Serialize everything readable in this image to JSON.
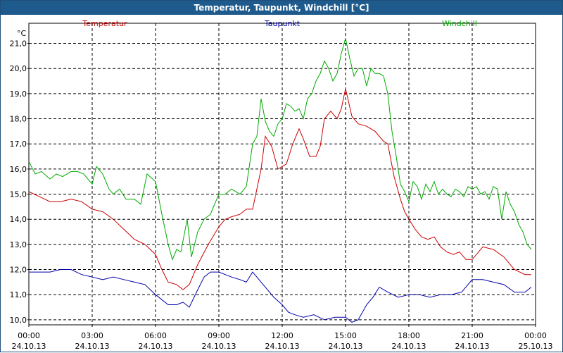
{
  "window": {
    "title": "Temperatur, Taupunkt, Windchill [°C]"
  },
  "chart_data": {
    "type": "line",
    "title": "Temperatur, Taupunkt, Windchill [°C]",
    "ylabel": "°C",
    "xlim": [
      "2013-10-24T00:00",
      "2013-10-25T00:00"
    ],
    "ylim": [
      9.8,
      21.8
    ],
    "grid": true,
    "legend": "top",
    "yticks": [
      "21,0",
      "20,0",
      "19,0",
      "18,0",
      "17,0",
      "16,0",
      "15,0",
      "14,0",
      "13,0",
      "12,0",
      "11,0",
      "10,0"
    ],
    "ytick_values": [
      21,
      20,
      19,
      18,
      17,
      16,
      15,
      14,
      13,
      12,
      11,
      10
    ],
    "xticks": [
      {
        "time": "00:00",
        "date": "24.10.13",
        "hour": 0
      },
      {
        "time": "03:00",
        "date": "24.10.13",
        "hour": 3
      },
      {
        "time": "06:00",
        "date": "24.10.13",
        "hour": 6
      },
      {
        "time": "09:00",
        "date": "24.10.13",
        "hour": 9
      },
      {
        "time": "12:00",
        "date": "24.10.13",
        "hour": 12
      },
      {
        "time": "15:00",
        "date": "24.10.13",
        "hour": 15
      },
      {
        "time": "18:00",
        "date": "24.10.13",
        "hour": 18
      },
      {
        "time": "21:00",
        "date": "24.10.13",
        "hour": 21
      },
      {
        "time": "00:00",
        "date": "25.10.13",
        "hour": 24
      }
    ],
    "series": [
      {
        "name": "Temperatur",
        "color": "#cc0000",
        "x": [
          0,
          0.5,
          1,
          1.5,
          2,
          2.5,
          3,
          3.5,
          4,
          4.5,
          5,
          5.5,
          6,
          6.3,
          6.6,
          7,
          7.3,
          7.6,
          8,
          8.5,
          9,
          9.3,
          9.6,
          10,
          10.3,
          10.6,
          10.8,
          11,
          11.2,
          11.5,
          11.8,
          12,
          12.2,
          12.5,
          12.8,
          13,
          13.3,
          13.6,
          13.8,
          14,
          14.3,
          14.6,
          14.8,
          15,
          15.3,
          15.6,
          16,
          16.4,
          16.8,
          17,
          17.3,
          17.6,
          17.8,
          18,
          18.3,
          18.6,
          18.9,
          19.2,
          19.5,
          19.8,
          20.1,
          20.4,
          20.7,
          21,
          21.5,
          22,
          22.5,
          23,
          23.5,
          23.8
        ],
        "y": [
          15.1,
          14.9,
          14.7,
          14.7,
          14.8,
          14.7,
          14.4,
          14.3,
          14.0,
          13.6,
          13.2,
          13.0,
          12.6,
          12.0,
          11.5,
          11.4,
          11.2,
          11.4,
          12.2,
          13.0,
          13.7,
          14.0,
          14.1,
          14.2,
          14.4,
          14.4,
          15.2,
          16.0,
          17.3,
          16.9,
          16.0,
          16.1,
          16.2,
          17.0,
          17.6,
          17.2,
          16.5,
          16.5,
          16.9,
          18.0,
          18.3,
          18.0,
          18.4,
          19.2,
          18.1,
          17.8,
          17.7,
          17.5,
          17.1,
          17.0,
          15.7,
          14.8,
          14.3,
          14.0,
          13.6,
          13.3,
          13.2,
          13.3,
          12.9,
          12.7,
          12.6,
          12.7,
          12.4,
          12.4,
          12.9,
          12.8,
          12.5,
          12.0,
          11.8,
          11.8
        ]
      },
      {
        "name": "Taupunkt",
        "color": "#0000aa",
        "x": [
          0,
          0.5,
          1,
          1.5,
          2,
          2.5,
          3,
          3.5,
          4,
          4.5,
          5,
          5.5,
          6,
          6.3,
          6.6,
          7,
          7.3,
          7.6,
          8,
          8.3,
          8.6,
          9,
          9.3,
          9.6,
          10,
          10.3,
          10.6,
          11,
          11.3,
          11.6,
          12,
          12.3,
          12.6,
          13,
          13.5,
          14,
          14.5,
          15,
          15.3,
          15.6,
          16,
          16.3,
          16.6,
          17,
          17.5,
          18,
          18.5,
          19,
          19.5,
          20,
          20.5,
          21,
          21.5,
          22,
          22.5,
          23,
          23.5,
          23.8
        ],
        "y": [
          11.9,
          11.9,
          11.9,
          12.0,
          12.0,
          11.8,
          11.7,
          11.6,
          11.7,
          11.6,
          11.5,
          11.4,
          11.0,
          10.8,
          10.6,
          10.6,
          10.7,
          10.5,
          11.2,
          11.7,
          11.9,
          11.9,
          11.8,
          11.7,
          11.6,
          11.5,
          11.9,
          11.5,
          11.2,
          10.9,
          10.6,
          10.3,
          10.2,
          10.1,
          10.2,
          10.0,
          10.1,
          10.1,
          9.9,
          10.0,
          10.6,
          10.9,
          11.3,
          11.1,
          10.9,
          11.0,
          11.0,
          10.9,
          11.0,
          11.0,
          11.1,
          11.6,
          11.6,
          11.5,
          11.4,
          11.1,
          11.1,
          11.3
        ]
      },
      {
        "name": "Windchill",
        "color": "#00aa00",
        "x": [
          0,
          0.3,
          0.6,
          1,
          1.3,
          1.6,
          2,
          2.3,
          2.6,
          3,
          3.2,
          3.5,
          3.8,
          4,
          4.3,
          4.6,
          5,
          5.3,
          5.6,
          6,
          6.3,
          6.6,
          6.8,
          7,
          7.2,
          7.5,
          7.7,
          8,
          8.3,
          8.6,
          9,
          9.3,
          9.6,
          10,
          10.3,
          10.6,
          10.8,
          11,
          11.2,
          11.4,
          11.6,
          11.8,
          12,
          12.2,
          12.4,
          12.6,
          12.8,
          13,
          13.2,
          13.4,
          13.6,
          13.8,
          14,
          14.2,
          14.4,
          14.6,
          14.8,
          15,
          15.2,
          15.4,
          15.6,
          15.8,
          16,
          16.2,
          16.4,
          16.6,
          16.8,
          17,
          17.2,
          17.4,
          17.6,
          17.8,
          18,
          18.2,
          18.4,
          18.6,
          18.8,
          19,
          19.2,
          19.4,
          19.6,
          19.8,
          20,
          20.2,
          20.4,
          20.6,
          20.8,
          21,
          21.2,
          21.4,
          21.6,
          21.8,
          22,
          22.2,
          22.4,
          22.6,
          22.8,
          23,
          23.2,
          23.4,
          23.6,
          23.8
        ],
        "y": [
          16.3,
          15.8,
          15.9,
          15.6,
          15.8,
          15.7,
          15.9,
          15.9,
          15.8,
          15.4,
          16.1,
          15.8,
          15.2,
          15.0,
          15.2,
          14.8,
          14.8,
          14.6,
          15.8,
          15.5,
          14.2,
          13.0,
          12.4,
          12.8,
          12.7,
          14.0,
          12.5,
          13.5,
          14.0,
          14.2,
          15.0,
          15.0,
          15.2,
          15.0,
          15.3,
          17.0,
          17.3,
          18.8,
          17.9,
          17.5,
          17.3,
          17.8,
          18.0,
          18.6,
          18.5,
          18.3,
          18.4,
          18.0,
          18.8,
          19.0,
          19.5,
          19.8,
          20.3,
          20.0,
          19.5,
          19.8,
          20.6,
          21.2,
          20.4,
          19.7,
          20.0,
          20.0,
          19.3,
          20.0,
          19.8,
          19.8,
          19.7,
          19.0,
          17.5,
          16.5,
          15.4,
          15.1,
          14.7,
          15.5,
          15.3,
          14.8,
          15.4,
          15.1,
          15.5,
          15.0,
          15.2,
          15.0,
          14.9,
          15.2,
          15.1,
          14.9,
          15.3,
          15.2,
          15.3,
          15.0,
          15.1,
          14.8,
          15.3,
          15.2,
          14.0,
          15.1,
          14.6,
          14.3,
          13.8,
          13.5,
          13.0,
          12.8
        ]
      }
    ]
  }
}
